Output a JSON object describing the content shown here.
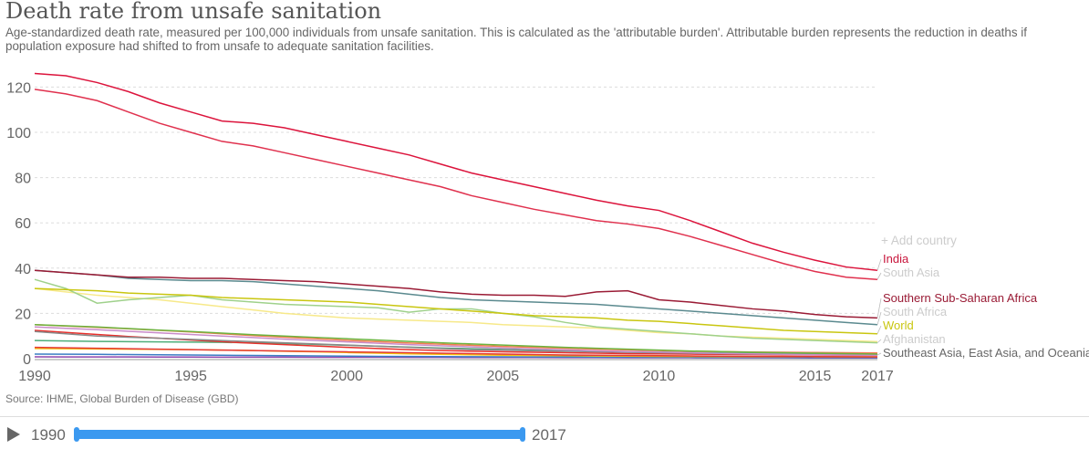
{
  "header": {
    "title": "Death rate from unsafe sanitation",
    "subtitle": "Age-standardized death rate, measured per 100,000 individuals from unsafe sanitation. This is calculated as the 'attributable burden'. Attributable burden represents the reduction in deaths if population exposure had shifted to from unsafe to adequate sanitation facilities."
  },
  "add_country": "+ Add country",
  "source": "Source: IHME, Global Burden of Disease (GBD)",
  "timeline": {
    "start": "1990",
    "end": "2017"
  },
  "chart_data": {
    "type": "line",
    "title": "Death rate from unsafe sanitation",
    "xlabel": "",
    "ylabel": "",
    "xlim": [
      1990,
      2017
    ],
    "ylim": [
      0,
      125
    ],
    "grid": "horizontal dashed",
    "legend": "right, inline labels",
    "x_ticks": [
      "1990",
      "1995",
      "2000",
      "2005",
      "2010",
      "2015",
      "2017"
    ],
    "y_ticks": [
      "0",
      "20",
      "40",
      "60",
      "80",
      "100",
      "120"
    ],
    "x": [
      1990,
      1991,
      1992,
      1993,
      1994,
      1995,
      1996,
      1997,
      1998,
      1999,
      2000,
      2001,
      2002,
      2003,
      2004,
      2005,
      2006,
      2007,
      2008,
      2009,
      2010,
      2011,
      2012,
      2013,
      2014,
      2015,
      2016,
      2017
    ],
    "series": [
      {
        "name": "India",
        "color": "#dc143c",
        "label_color": "#c8163c",
        "values": [
          126,
          125,
          122,
          118,
          113,
          109,
          105,
          104,
          102,
          99,
          96,
          93,
          90,
          86,
          82,
          79,
          76,
          73,
          70,
          67.5,
          65.5,
          61,
          56,
          51,
          47,
          43.5,
          40.5,
          39
        ]
      },
      {
        "name": "South Asia",
        "color": "#e0314e",
        "label_color": "#ccc",
        "values": [
          119,
          117,
          114,
          109,
          104,
          100,
          96,
          94,
          91,
          88,
          85,
          82,
          79,
          76,
          72,
          69,
          66,
          63.5,
          61,
          59.5,
          57.5,
          54,
          50,
          46,
          42,
          38.5,
          36,
          35
        ]
      },
      {
        "name": "Southern Sub-Saharan Africa",
        "color": "#9a1b35",
        "label_color": "#9a1b35",
        "values": [
          39,
          38,
          37,
          36,
          36,
          35.5,
          35.5,
          35,
          34.5,
          34,
          33,
          32,
          31,
          29.5,
          28.5,
          28,
          28,
          27.5,
          29.5,
          30,
          26,
          25,
          23.5,
          22,
          21,
          19.5,
          18.5,
          18
        ]
      },
      {
        "name": "South Africa",
        "color": "#5b8a8f",
        "label_color": "#ccc",
        "values": [
          39,
          38,
          37,
          35.5,
          35,
          34.5,
          34.5,
          34,
          33,
          32,
          31,
          30,
          28.5,
          27,
          26,
          25.5,
          25,
          24.5,
          24,
          23,
          22,
          21,
          20,
          19,
          18,
          17,
          16,
          15
        ]
      },
      {
        "name": "World",
        "color": "#c9c610",
        "label_color": "#c9c610",
        "values": [
          31,
          30.5,
          30,
          29,
          28.5,
          28,
          27,
          26.5,
          26,
          25.5,
          25,
          24,
          23,
          22,
          21,
          20,
          19,
          18.5,
          18,
          17,
          16.5,
          15.5,
          14.5,
          13.5,
          12.5,
          12,
          11.5,
          11
        ]
      },
      {
        "name": "Afghanistan",
        "color": "#9fd18b",
        "label_color": "#ccc",
        "values": [
          35,
          31,
          24.5,
          26,
          27,
          28,
          26,
          25,
          24,
          23.5,
          23,
          22.5,
          20.5,
          22,
          22,
          20,
          18.5,
          16,
          14,
          13,
          12,
          11,
          10,
          9,
          8.5,
          8,
          7.5,
          7
        ]
      },
      {
        "color": "#f7e98a",
        "values": [
          31,
          29.5,
          28,
          27,
          26,
          24.5,
          23,
          21.5,
          20,
          19,
          18,
          17.5,
          17,
          16.5,
          16,
          15,
          14.5,
          14,
          13.5,
          12.5,
          11.5,
          11,
          10,
          9.5,
          9,
          8.5,
          8,
          7.5
        ]
      },
      {
        "color": "#6cb33f",
        "values": [
          15,
          14.5,
          14,
          13.3,
          12.6,
          12,
          11.3,
          10.6,
          10,
          9.4,
          8.8,
          8.2,
          7.6,
          7,
          6.5,
          6,
          5.5,
          5,
          4.6,
          4.2,
          3.8,
          3.4,
          3.1,
          2.8,
          2.6,
          2.4,
          2.2,
          2
        ]
      },
      {
        "color": "#f27d52",
        "values": [
          15,
          14.4,
          13.8,
          13.2,
          12.5,
          11.8,
          11,
          10.2,
          9.5,
          8.8,
          8.1,
          7.5,
          6.9,
          6.4,
          5.9,
          5.4,
          5,
          4.6,
          4.2,
          3.9,
          3.6,
          3.3,
          3.1,
          2.9,
          2.8,
          2.7,
          2.6,
          2.5
        ]
      },
      {
        "color": "#c98bc9",
        "values": [
          14,
          13.4,
          12.8,
          12.1,
          11.4,
          10.7,
          10,
          9.3,
          8.6,
          8,
          7.4,
          6.8,
          6.2,
          5.7,
          5.2,
          4.7,
          4.3,
          3.9,
          3.5,
          3.2,
          2.9,
          2.6,
          2.3,
          2.1,
          1.9,
          1.7,
          1.6,
          1.5
        ]
      },
      {
        "name": "Southeast Asia, East Asia, and Oceania",
        "color": "#888888",
        "label_color": "#666",
        "values": [
          12,
          11,
          10,
          9.5,
          9,
          8.5,
          8,
          7.5,
          7,
          6.5,
          6,
          5.5,
          5,
          4.5,
          4,
          3.8,
          3.5,
          3.3,
          3,
          2.8,
          2.6,
          2.4,
          2.2,
          2,
          1.9,
          1.8,
          1.7,
          1.6
        ]
      },
      {
        "color": "#e8302c",
        "values": [
          12.5,
          11.6,
          10.7,
          9.8,
          9,
          8.2,
          7.5,
          6.8,
          6.2,
          5.6,
          5,
          4.5,
          4,
          3.6,
          3.3,
          3,
          2.8,
          2.6,
          2.4,
          2.2,
          2.1,
          2,
          1.9,
          1.8,
          1.7,
          1.6,
          1.55,
          1.5
        ]
      },
      {
        "color": "#4fae7a",
        "values": [
          8,
          7.8,
          7.6,
          7.5,
          7.4,
          7.3,
          7.2,
          7,
          6.7,
          6.3,
          5.9,
          5.5,
          5.1,
          4.7,
          4.4,
          4.1,
          3.8,
          3.5,
          3.3,
          3.1,
          2.9,
          2.7,
          2.5,
          2.4,
          2.3,
          2.2,
          2.1,
          2
        ]
      },
      {
        "color": "#e53935",
        "values": [
          5,
          4.8,
          4.6,
          4.4,
          4.2,
          4,
          3.8,
          3.6,
          3.4,
          3.2,
          3,
          2.8,
          2.6,
          2.4,
          2.2,
          2,
          1.8,
          1.6,
          1.5,
          1.4,
          1.3,
          1.2,
          1.1,
          1,
          0.95,
          0.9,
          0.85,
          0.8
        ]
      },
      {
        "color": "#f4c20d",
        "values": [
          4.5,
          4.4,
          4.3,
          4.2,
          4.1,
          4,
          3.8,
          3.6,
          3.3,
          3,
          2.7,
          2.4,
          2.1,
          1.9,
          1.7,
          1.5,
          1.4,
          1.3,
          1.2,
          1.1,
          1,
          0.95,
          0.9,
          0.88,
          0.85,
          0.83,
          0.81,
          0.8
        ]
      },
      {
        "color": "#3b7dc4",
        "values": [
          2,
          1.95,
          1.9,
          1.8,
          1.7,
          1.6,
          1.5,
          1.4,
          1.3,
          1.2,
          1.1,
          1,
          0.95,
          0.9,
          0.85,
          0.8,
          0.75,
          0.7,
          0.67,
          0.64,
          0.61,
          0.58,
          0.56,
          0.54,
          0.52,
          0.51,
          0.5,
          0.5
        ]
      },
      {
        "color": "#8e44ad",
        "values": [
          0.8,
          0.78,
          0.76,
          0.74,
          0.72,
          0.7,
          0.68,
          0.66,
          0.64,
          0.62,
          0.6,
          0.58,
          0.56,
          0.54,
          0.52,
          0.5,
          0.48,
          0.46,
          0.44,
          0.42,
          0.4,
          0.38,
          0.36,
          0.34,
          0.33,
          0.32,
          0.31,
          0.3
        ]
      }
    ]
  }
}
